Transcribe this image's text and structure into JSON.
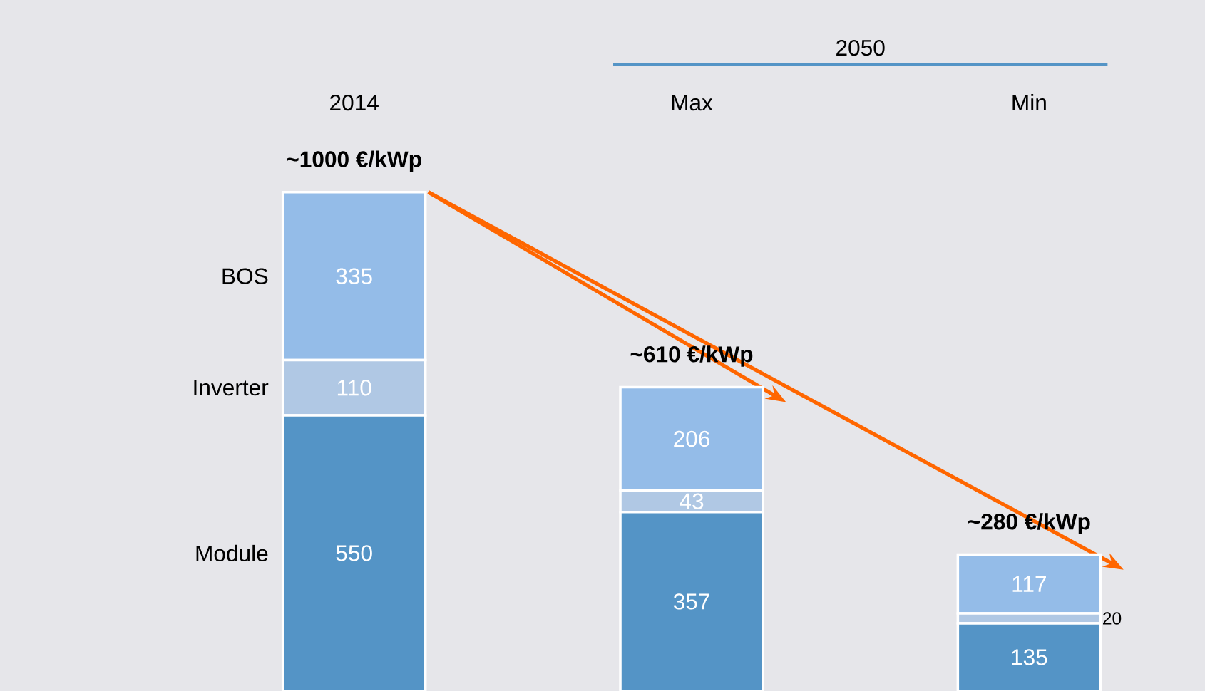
{
  "chart_data": {
    "type": "bar",
    "stacked": true,
    "data_labels": true,
    "categories": [
      "2014",
      "Max",
      "Min"
    ],
    "series": [
      {
        "name": "Module",
        "color": "#5494c6",
        "values": [
          550,
          357,
          135
        ]
      },
      {
        "name": "Inverter",
        "color": "#b0c8e4",
        "values": [
          110,
          43,
          20
        ]
      },
      {
        "name": "BOS",
        "color": "#94bce8",
        "values": [
          335,
          206,
          117
        ]
      }
    ],
    "annotations": [
      {
        "text": "~1000 €/kWp",
        "x": "2014",
        "y": 995
      },
      {
        "text": "~610 €/kWp",
        "x": "Max",
        "y": 606
      },
      {
        "text": "~280 €/kWp",
        "x": "Min",
        "y": 272
      },
      "2050"
    ]
  }
}
